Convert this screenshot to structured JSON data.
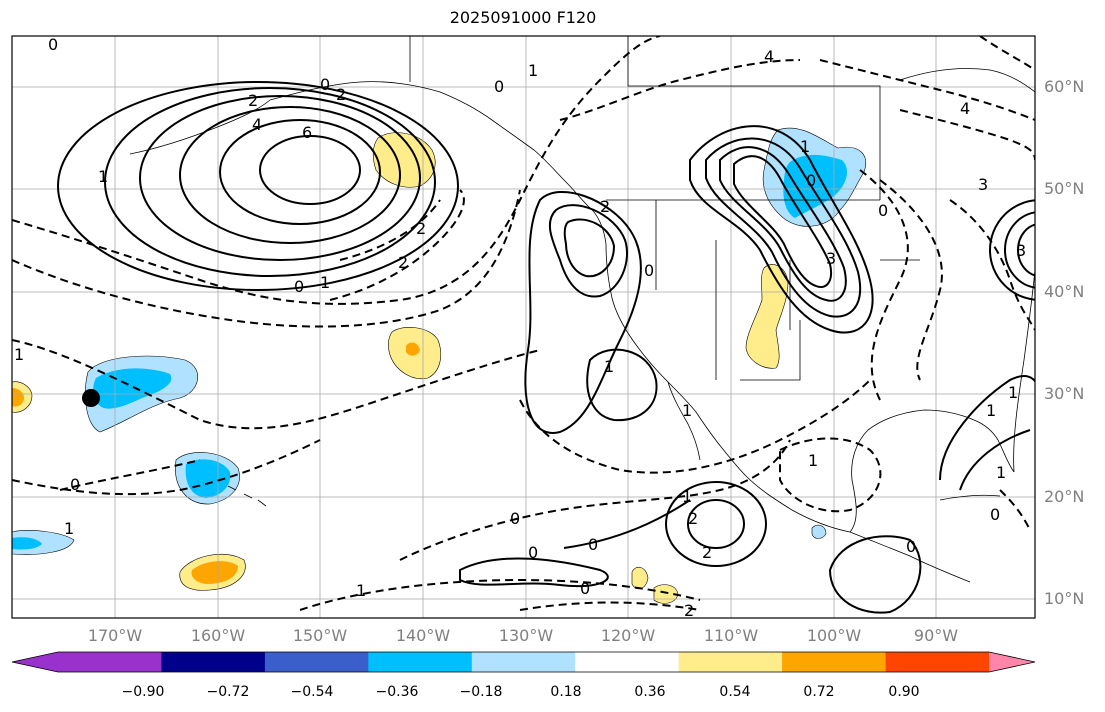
{
  "title": "2025091000 F120",
  "latitude_labels": [
    "60°N",
    "50°N",
    "40°N",
    "30°N",
    "20°N",
    "10°N"
  ],
  "longitude_labels": [
    "170°W",
    "160°W",
    "150°W",
    "140°W",
    "130°W",
    "120°W",
    "110°W",
    "100°W",
    "90°W"
  ],
  "colorbar": {
    "tick_labels": [
      "−0.90",
      "−0.72",
      "−0.54",
      "−0.36",
      "−0.18",
      "0.18",
      "0.36",
      "0.54",
      "0.72",
      "0.90"
    ],
    "colors": [
      "#9932cc",
      "#00008b",
      "#3a5fcd",
      "#00bfff",
      "#b0e2ff",
      "#ffffff",
      "#ffec8b",
      "#ffa500",
      "#ff4500",
      "#b22222",
      "#ff86aa"
    ]
  },
  "contour_labels": {
    "upper_left_zero": "0",
    "gulf_alaska_2": "2",
    "gulf_alaska_4": "4",
    "gulf_alaska_6": "6",
    "gulf_alaska_0a": "0",
    "gulf_alaska_2b": "2",
    "gulf_alaska_1": "1",
    "pacific_0": "0",
    "pacific_1": "1",
    "pacific_neg2a": "2",
    "pacific_neg2b": "2",
    "alaska_0": "0",
    "alaska_1": "1",
    "canada_4": "4",
    "canada_3": "3",
    "canada_4b": "4",
    "canada_1": "1",
    "canada_0": "0",
    "west_coast_2": "2",
    "west_coast_0": "0",
    "plains_3": "3",
    "plains_0": "0",
    "east_3": "3",
    "baja_1": "1",
    "baja_1b": "1",
    "mexico_1": "1",
    "hawaii_0": "0",
    "hawaii_1": "1",
    "trop_0a": "0",
    "trop_0b": "0",
    "trop_0c": "0",
    "trop_0d": "0",
    "trop_1": "1",
    "trop_2": "2",
    "trop_2b": "2",
    "trop_neg1": "1",
    "trop_neg2": "2",
    "gulf_1": "1",
    "east_1": "1",
    "east_0": "0",
    "atl_0": "0",
    "atl_1": "1",
    "west_1": "1"
  }
}
